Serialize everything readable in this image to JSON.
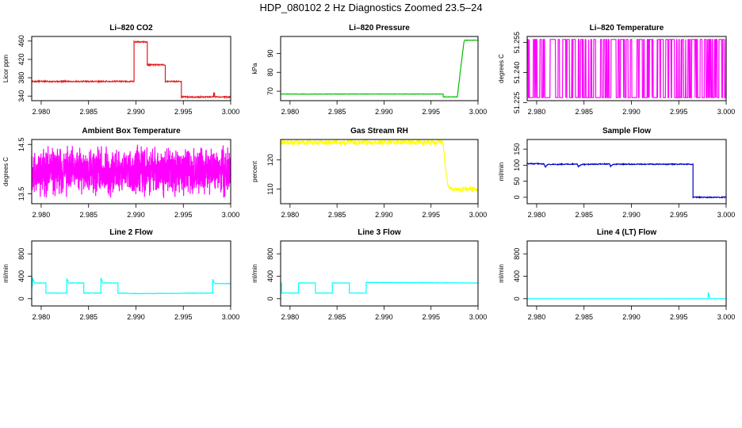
{
  "title": "HDP_080102  2 Hz Diagnostics Zoomed 23.5–24",
  "chart_data": [
    {
      "type": "line",
      "title": "Li–820 CO2",
      "ylabel": "Licor ppm",
      "color": "#e31a1c",
      "xlim": [
        2.979,
        3.0
      ],
      "ylim": [
        330,
        470
      ],
      "xticks": [
        "2.980",
        "2.985",
        "2.990",
        "2.995",
        "3.000"
      ],
      "xtick_values": [
        2.98,
        2.985,
        2.99,
        2.995,
        3.0
      ],
      "yticks": [
        "340",
        "380",
        "420",
        "460"
      ],
      "ytick_values": [
        340,
        380,
        420,
        460
      ],
      "noise": 1.5,
      "x": [
        2.979,
        2.9898,
        2.9898,
        2.9912,
        2.9912,
        2.9931,
        2.9931,
        2.9948,
        2.9948,
        2.9982,
        2.9982,
        2.9983,
        2.9983,
        3.0
      ],
      "y": [
        372,
        372,
        458,
        458,
        408,
        408,
        372,
        372,
        338,
        338,
        346,
        346,
        338,
        338
      ]
    },
    {
      "type": "line",
      "title": "Li–820 Pressure",
      "ylabel": "kPa",
      "color": "#00c000",
      "xlim": [
        2.979,
        3.0
      ],
      "ylim": [
        65,
        99
      ],
      "xticks": [
        "2.980",
        "2.985",
        "2.990",
        "2.995",
        "3.000"
      ],
      "xtick_values": [
        2.98,
        2.985,
        2.99,
        2.995,
        3.0
      ],
      "yticks": [
        "70",
        "80",
        "90"
      ],
      "ytick_values": [
        70,
        80,
        90
      ],
      "noise": 0.1,
      "x": [
        2.979,
        2.9963,
        2.9963,
        2.9978,
        2.9982,
        2.9985,
        2.9986,
        3.0
      ],
      "y": [
        68.5,
        68.5,
        67.0,
        67.0,
        84,
        96,
        97,
        97
      ]
    },
    {
      "type": "line",
      "title": "Li–820 Temperature",
      "ylabel": "degrees C",
      "color": "#ff00ff",
      "xlim": [
        2.979,
        3.0
      ],
      "ylim": [
        51.226,
        51.258
      ],
      "xticks": [
        "2.980",
        "2.985",
        "2.990",
        "2.995",
        "3.000"
      ],
      "xtick_values": [
        2.98,
        2.985,
        2.99,
        2.995,
        3.0
      ],
      "yticks": [
        "51.225",
        "51.240",
        "51.255"
      ],
      "ytick_values": [
        51.225,
        51.24,
        51.255
      ],
      "pattern": "binary",
      "levels": [
        51.2275,
        51.2565
      ],
      "seed": 7
    },
    {
      "type": "line",
      "title": "Ambient Box Temperature",
      "ylabel": "degrees C",
      "color": "#ff00ff",
      "xlim": [
        2.979,
        3.0
      ],
      "ylim": [
        13.3,
        14.6
      ],
      "xticks": [
        "2.980",
        "2.985",
        "2.990",
        "2.995",
        "3.000"
      ],
      "xtick_values": [
        2.98,
        2.985,
        2.99,
        2.995,
        3.0
      ],
      "yticks": [
        "13.5",
        "14.5"
      ],
      "ytick_values": [
        13.5,
        14.5
      ],
      "pattern": "noise",
      "center": 13.95,
      "amplitude": 0.55,
      "seed": 11
    },
    {
      "type": "line",
      "title": "Gas Stream RH",
      "ylabel": "percent",
      "color": "#ffff00",
      "xlim": [
        2.979,
        3.0
      ],
      "ylim": [
        105,
        127
      ],
      "xticks": [
        "2.980",
        "2.985",
        "2.990",
        "2.995",
        "3.000"
      ],
      "xtick_values": [
        2.98,
        2.985,
        2.99,
        2.995,
        3.0
      ],
      "yticks": [
        "110",
        "120"
      ],
      "ytick_values": [
        110,
        120
      ],
      "noise": 0.8,
      "x": [
        2.979,
        2.9963,
        2.9965,
        2.9968,
        2.9972,
        3.0
      ],
      "y": [
        126,
        126,
        118,
        111,
        110,
        110
      ]
    },
    {
      "type": "line",
      "title": "Sample Flow",
      "ylabel": "ml/min",
      "color": "#0000cd",
      "xlim": [
        2.979,
        3.0
      ],
      "ylim": [
        -20,
        180
      ],
      "xticks": [
        "2.980",
        "2.985",
        "2.990",
        "2.995",
        "3.000"
      ],
      "xtick_values": [
        2.98,
        2.985,
        2.99,
        2.995,
        3.0
      ],
      "yticks": [
        "0",
        "50",
        "100",
        "150"
      ],
      "ytick_values": [
        0,
        50,
        100,
        150
      ],
      "noise": 1.5,
      "x": [
        2.979,
        2.9808,
        2.9809,
        2.9812,
        2.9843,
        2.9844,
        2.9847,
        2.9877,
        2.9878,
        2.9881,
        2.9965,
        2.9965,
        3.0
      ],
      "y": [
        105,
        104,
        94,
        102,
        104,
        96,
        102,
        104,
        97,
        103,
        103,
        0,
        0
      ]
    },
    {
      "type": "line",
      "title": "Line 2 Flow",
      "ylabel": "ml/min",
      "color": "#00ffff",
      "xlim": [
        2.979,
        3.0
      ],
      "ylim": [
        -130,
        1030
      ],
      "xticks": [
        "2.980",
        "2.985",
        "2.990",
        "2.995",
        "3.000"
      ],
      "xtick_values": [
        2.98,
        2.985,
        2.99,
        2.995,
        3.0
      ],
      "yticks": [
        "0",
        "400",
        "800"
      ],
      "ytick_values": [
        0,
        400,
        800
      ],
      "noise": 4,
      "x": [
        2.979,
        2.9791,
        2.9793,
        2.9805,
        2.9805,
        2.9827,
        2.9827,
        2.9829,
        2.9845,
        2.9845,
        2.9863,
        2.9863,
        2.9865,
        2.9881,
        2.9881,
        2.9903,
        2.9981,
        2.9981,
        2.9983,
        3.0
      ],
      "y": [
        160,
        360,
        280,
        280,
        100,
        100,
        360,
        280,
        280,
        100,
        100,
        370,
        280,
        280,
        100,
        90,
        100,
        350,
        270,
        270
      ]
    },
    {
      "type": "line",
      "title": "Line 3 Flow",
      "ylabel": "ml/min",
      "color": "#00ffff",
      "xlim": [
        2.979,
        3.0
      ],
      "ylim": [
        -130,
        1030
      ],
      "xticks": [
        "2.980",
        "2.985",
        "2.990",
        "2.995",
        "3.000"
      ],
      "xtick_values": [
        2.98,
        2.985,
        2.99,
        2.995,
        3.0
      ],
      "yticks": [
        "0",
        "400",
        "800"
      ],
      "ytick_values": [
        0,
        400,
        800
      ],
      "noise": 3,
      "x": [
        2.979,
        2.9791,
        2.9791,
        2.9809,
        2.9809,
        2.9827,
        2.9827,
        2.9845,
        2.9845,
        2.9863,
        2.9863,
        2.9881,
        2.9881,
        3.0
      ],
      "y": [
        280,
        280,
        100,
        100,
        280,
        280,
        100,
        100,
        280,
        280,
        100,
        100,
        290,
        280
      ]
    },
    {
      "type": "line",
      "title": "Line 4 (LT) Flow",
      "ylabel": "ml/min",
      "color": "#00ffff",
      "xlim": [
        2.979,
        3.0
      ],
      "ylim": [
        -130,
        1030
      ],
      "xticks": [
        "2.980",
        "2.985",
        "2.990",
        "2.995",
        "3.000"
      ],
      "xtick_values": [
        2.98,
        2.985,
        2.99,
        2.995,
        3.0
      ],
      "yticks": [
        "0",
        "400",
        "800"
      ],
      "ytick_values": [
        0,
        400,
        800
      ],
      "noise": 1,
      "x": [
        2.979,
        2.9981,
        2.9981,
        2.9983,
        2.9983,
        3.0
      ],
      "y": [
        0,
        0,
        110,
        10,
        0,
        0
      ]
    }
  ]
}
